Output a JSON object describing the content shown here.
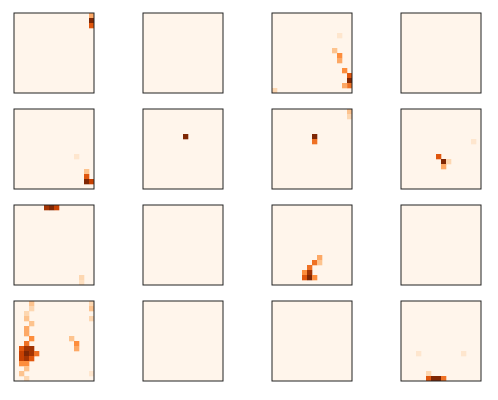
{
  "chart_data": [
    {
      "type": "heatmap",
      "shape": [
        16,
        16
      ],
      "cells": [
        [
          0,
          15,
          0.4
        ],
        [
          1,
          15,
          1
        ],
        [
          2,
          15,
          0.7
        ]
      ]
    },
    {
      "type": "heatmap",
      "shape": [
        16,
        16
      ],
      "cells": []
    },
    {
      "type": "heatmap",
      "shape": [
        16,
        16
      ],
      "cells": [
        [
          4,
          13,
          0.1
        ],
        [
          7,
          12,
          0.3
        ],
        [
          8,
          13,
          0.5
        ],
        [
          9,
          13,
          0.4
        ],
        [
          11,
          14,
          0.5
        ],
        [
          12,
          15,
          0.7
        ],
        [
          13,
          15,
          1
        ],
        [
          14,
          15,
          0.6
        ],
        [
          14,
          14,
          0.4
        ],
        [
          15,
          0,
          0.2
        ]
      ]
    },
    {
      "type": "heatmap",
      "shape": [
        16,
        16
      ],
      "cells": []
    },
    {
      "type": "heatmap",
      "shape": [
        16,
        16
      ],
      "cells": [
        [
          9,
          12,
          0.1
        ],
        [
          12,
          14,
          0.3
        ],
        [
          13,
          14,
          0.7
        ],
        [
          14,
          14,
          1
        ],
        [
          14,
          15,
          0.8
        ]
      ]
    },
    {
      "type": "heatmap",
      "shape": [
        16,
        16
      ],
      "cells": [
        [
          5,
          8,
          1
        ]
      ]
    },
    {
      "type": "heatmap",
      "shape": [
        16,
        16
      ],
      "cells": [
        [
          0,
          15,
          0.3
        ],
        [
          1,
          15,
          0.2
        ],
        [
          5,
          8,
          1
        ],
        [
          6,
          8,
          0.6
        ]
      ]
    },
    {
      "type": "heatmap",
      "shape": [
        16,
        16
      ],
      "cells": [
        [
          6,
          14,
          0.1
        ],
        [
          9,
          7,
          0.7
        ],
        [
          10,
          8,
          1
        ],
        [
          10,
          9,
          0.2
        ],
        [
          11,
          8,
          0.4
        ]
      ]
    },
    {
      "type": "heatmap",
      "shape": [
        16,
        16
      ],
      "cells": [
        [
          0,
          6,
          0.9
        ],
        [
          0,
          7,
          1
        ],
        [
          0,
          8,
          0.8
        ],
        [
          14,
          13,
          0.2
        ],
        [
          15,
          13,
          0.15
        ]
      ]
    },
    {
      "type": "heatmap",
      "shape": [
        16,
        16
      ],
      "cells": []
    },
    {
      "type": "heatmap",
      "shape": [
        16,
        16
      ],
      "cells": [
        [
          10,
          9,
          0.4
        ],
        [
          11,
          8,
          0.6
        ],
        [
          11,
          9,
          0.3
        ],
        [
          12,
          7,
          0.6
        ],
        [
          13,
          6,
          0.5
        ],
        [
          13,
          7,
          0.9
        ],
        [
          14,
          6,
          0.7
        ],
        [
          14,
          7,
          1
        ],
        [
          14,
          8,
          0.5
        ]
      ]
    },
    {
      "type": "heatmap",
      "shape": [
        16,
        16
      ],
      "cells": []
    },
    {
      "type": "heatmap",
      "shape": [
        16,
        16
      ],
      "cells": [
        [
          0,
          3,
          0.3
        ],
        [
          1,
          3,
          0.2
        ],
        [
          2,
          2,
          0.2
        ],
        [
          3,
          2,
          0.3
        ],
        [
          4,
          3,
          0.3
        ],
        [
          5,
          2,
          0.4
        ],
        [
          6,
          2,
          0.4
        ],
        [
          7,
          3,
          0.5
        ],
        [
          8,
          2,
          0.6
        ],
        [
          9,
          1,
          0.7
        ],
        [
          9,
          2,
          0.9
        ],
        [
          9,
          3,
          0.9
        ],
        [
          10,
          1,
          0.8
        ],
        [
          10,
          2,
          1
        ],
        [
          10,
          3,
          0.9
        ],
        [
          10,
          4,
          0.6
        ],
        [
          11,
          1,
          0.8
        ],
        [
          11,
          2,
          0.9
        ],
        [
          11,
          3,
          0.7
        ],
        [
          12,
          1,
          0.5
        ],
        [
          12,
          2,
          0.5
        ],
        [
          13,
          2,
          0.3
        ],
        [
          14,
          1,
          0.3
        ],
        [
          15,
          2,
          0.2
        ],
        [
          7,
          11,
          0.3
        ],
        [
          8,
          12,
          0.5
        ],
        [
          9,
          12,
          0.4
        ],
        [
          0,
          15,
          0.2
        ],
        [
          1,
          15,
          0.3
        ],
        [
          3,
          15,
          0.2
        ],
        [
          14,
          15,
          0.1
        ]
      ]
    },
    {
      "type": "heatmap",
      "shape": [
        16,
        16
      ],
      "cells": []
    },
    {
      "type": "heatmap",
      "shape": [
        16,
        16
      ],
      "cells": []
    },
    {
      "type": "heatmap",
      "shape": [
        16,
        16
      ],
      "cells": [
        [
          10,
          3,
          0.1
        ],
        [
          10,
          12,
          0.1
        ],
        [
          14,
          5,
          0.2
        ],
        [
          15,
          5,
          0.7
        ],
        [
          15,
          6,
          1
        ],
        [
          15,
          7,
          1
        ],
        [
          15,
          8,
          0.6
        ]
      ]
    }
  ]
}
